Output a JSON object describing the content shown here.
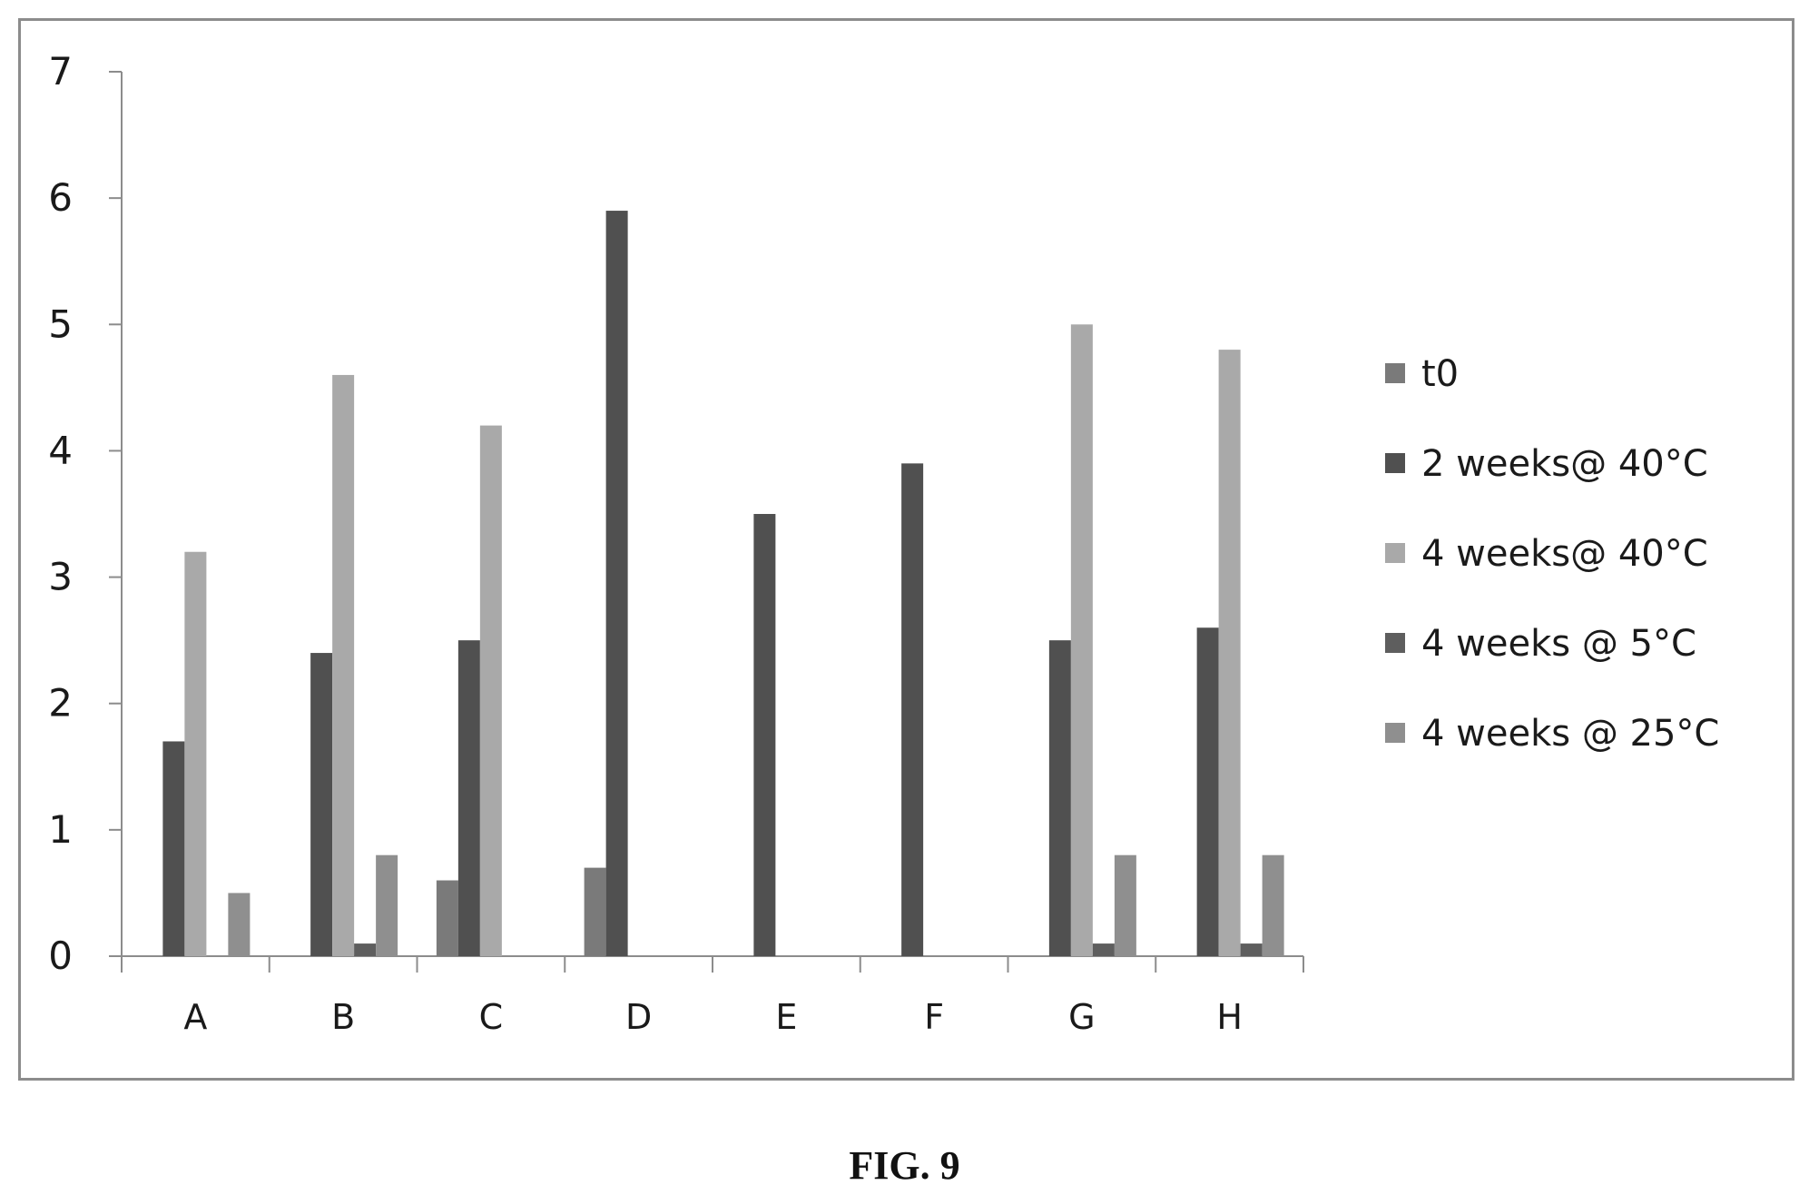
{
  "chart_data": {
    "type": "bar",
    "categories": [
      "A",
      "B",
      "C",
      "D",
      "E",
      "F",
      "G",
      "H"
    ],
    "series": [
      {
        "name": "t0",
        "color": "#7a7a7a",
        "values": [
          0,
          0,
          0.6,
          0.7,
          0,
          0,
          0,
          0
        ]
      },
      {
        "name": "2 weeks@ 40°C",
        "color": "#505050",
        "values": [
          1.7,
          2.4,
          2.5,
          5.9,
          3.5,
          3.9,
          2.5,
          2.6
        ]
      },
      {
        "name": "4 weeks@ 40°C",
        "color": "#a9a9a9",
        "values": [
          3.2,
          4.6,
          4.2,
          0,
          0,
          0,
          5.0,
          4.8
        ]
      },
      {
        "name": "4 weeks @ 5°C",
        "color": "#5e5e5e",
        "values": [
          0,
          0.1,
          0,
          0,
          0,
          0,
          0.1,
          0.1
        ]
      },
      {
        "name": "4 weeks @ 25°C",
        "color": "#8f8f8f",
        "values": [
          0.5,
          0.8,
          0,
          0,
          0,
          0,
          0.8,
          0.8
        ]
      }
    ],
    "ylim": [
      0,
      7
    ],
    "yticks": [
      "0",
      "1",
      "2",
      "3",
      "4",
      "5",
      "6",
      "7"
    ],
    "grid": false,
    "legend": "right"
  },
  "caption": "FIG. 9"
}
